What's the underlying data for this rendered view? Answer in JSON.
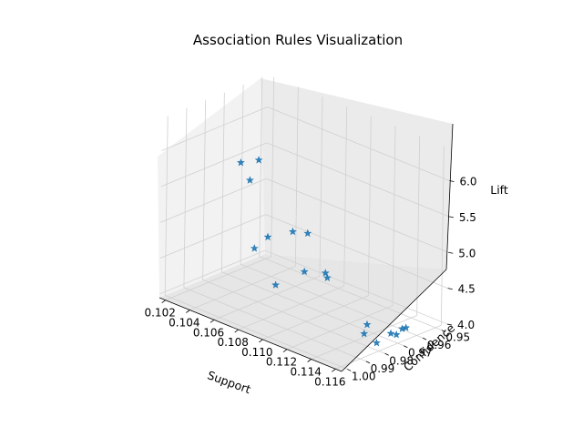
{
  "chart_data": {
    "type": "scatter",
    "projection": "3d",
    "title": "Association Rules Visualization",
    "xlabel": "Support",
    "ylabel": "Confidence",
    "zlabel": "Lift",
    "xticks": [
      "0.102",
      "0.104",
      "0.106",
      "0.108",
      "0.110",
      "0.112",
      "0.114",
      "0.116"
    ],
    "yticks": [
      "0.95",
      "0.96",
      "0.97",
      "0.98",
      "0.99",
      "1.00"
    ],
    "zticks": [
      "4.0",
      "4.5",
      "5.0",
      "5.5",
      "6.0"
    ],
    "marker": "star",
    "grid": true,
    "colors": {
      "marker": "#1f77b4",
      "pane_light": "#f2f2f2",
      "pane_dark": "#e6e6e6",
      "grid": "#d0d0d0"
    },
    "points": [
      {
        "x": 0.103,
        "y": 0.9625,
        "z": 4.3
      },
      {
        "x": 0.1055,
        "y": 0.9505,
        "z": 4.55
      },
      {
        "x": 0.107,
        "y": 0.9505,
        "z": 4.1
      },
      {
        "x": 0.1065,
        "y": 0.965,
        "z": 4.8
      },
      {
        "x": 0.109,
        "y": 0.9625,
        "z": 4.3
      },
      {
        "x": 0.1085,
        "y": 0.9715,
        "z": 4.45
      },
      {
        "x": 0.106,
        "y": 0.975,
        "z": 4.8
      },
      {
        "x": 0.109,
        "y": 0.99,
        "z": 4.5
      },
      {
        "x": 0.106,
        "y": 0.985,
        "z": 5.7
      },
      {
        "x": 0.106,
        "y": 0.99,
        "z": 6.0
      },
      {
        "x": 0.109,
        "y": 1.0,
        "z": 6.35
      },
      {
        "x": 0.114,
        "y": 0.975,
        "z": 4.0
      },
      {
        "x": 0.115,
        "y": 0.98,
        "z": 4.25
      },
      {
        "x": 0.1155,
        "y": 0.9625,
        "z": 4.05
      },
      {
        "x": 0.1158,
        "y": 0.9665,
        "z": 4.1
      },
      {
        "x": 0.1158,
        "y": 0.9695,
        "z": 4.05
      },
      {
        "x": 0.1158,
        "y": 0.9725,
        "z": 4.1
      },
      {
        "x": 0.1158,
        "y": 0.98,
        "z": 4.05
      }
    ]
  }
}
